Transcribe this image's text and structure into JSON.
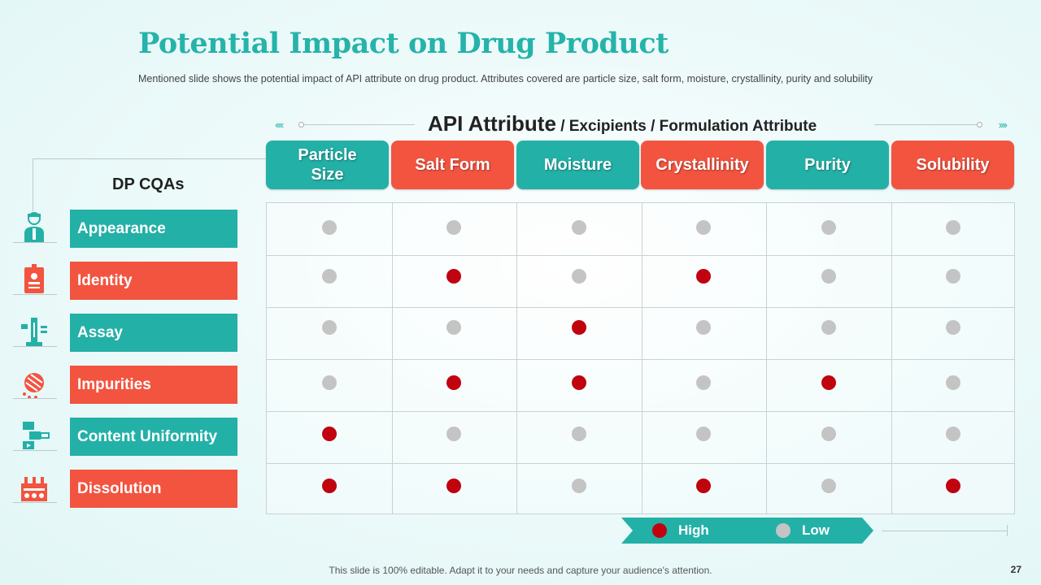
{
  "title": "Potential Impact on Drug Product",
  "subtitle": "Mentioned slide shows the potential impact of API attribute on drug product. Attributes covered  are particle size, salt form, moisture, crystallinity, purity and solubility",
  "header": {
    "main": "API Attribute",
    "rest": " / Excipients  / Formulation Attribute",
    "arrows_left": "‹‹‹‹",
    "arrows_right": "››››"
  },
  "columns": [
    {
      "label": "Particle\nSize",
      "color": "teal"
    },
    {
      "label": "Salt Form",
      "color": "red"
    },
    {
      "label": "Moisture",
      "color": "teal"
    },
    {
      "label": "Crystallinity",
      "color": "red"
    },
    {
      "label": "Purity",
      "color": "teal"
    },
    {
      "label": "Solubility",
      "color": "red"
    }
  ],
  "dp_label": "DP CQAs",
  "rows": [
    {
      "label": "Appearance",
      "color": "teal",
      "icon": "person-icon",
      "impact": [
        "Low",
        "Low",
        "Low",
        "Low",
        "Low",
        "Low"
      ]
    },
    {
      "label": "Identity",
      "color": "red",
      "icon": "id-card-icon",
      "impact": [
        "Low",
        "High",
        "Low",
        "High",
        "Low",
        "Low"
      ]
    },
    {
      "label": "Assay",
      "color": "teal",
      "icon": "lab-equipment-icon",
      "impact": [
        "Low",
        "Low",
        "High",
        "Low",
        "Low",
        "Low"
      ]
    },
    {
      "label": "Impurities",
      "color": "red",
      "icon": "bacteria-icon",
      "impact": [
        "Low",
        "High",
        "High",
        "Low",
        "High",
        "Low"
      ]
    },
    {
      "label": "Content Uniformity",
      "color": "teal",
      "icon": "molecule-icon",
      "impact": [
        "High",
        "Low",
        "Low",
        "Low",
        "Low",
        "Low"
      ]
    },
    {
      "label": "Dissolution",
      "color": "red",
      "icon": "test-tubes-icon",
      "impact": [
        "High",
        "High",
        "Low",
        "High",
        "Low",
        "High"
      ]
    }
  ],
  "legend": {
    "high": "High",
    "low": "Low"
  },
  "colors": {
    "teal": "#23b0a7",
    "red": "#f25440",
    "high": "#c0030f",
    "low": "#c4c4c4"
  },
  "footer": "This slide is 100% editable. Adapt it to your needs and capture your audience's attention.",
  "page_number": "27"
}
